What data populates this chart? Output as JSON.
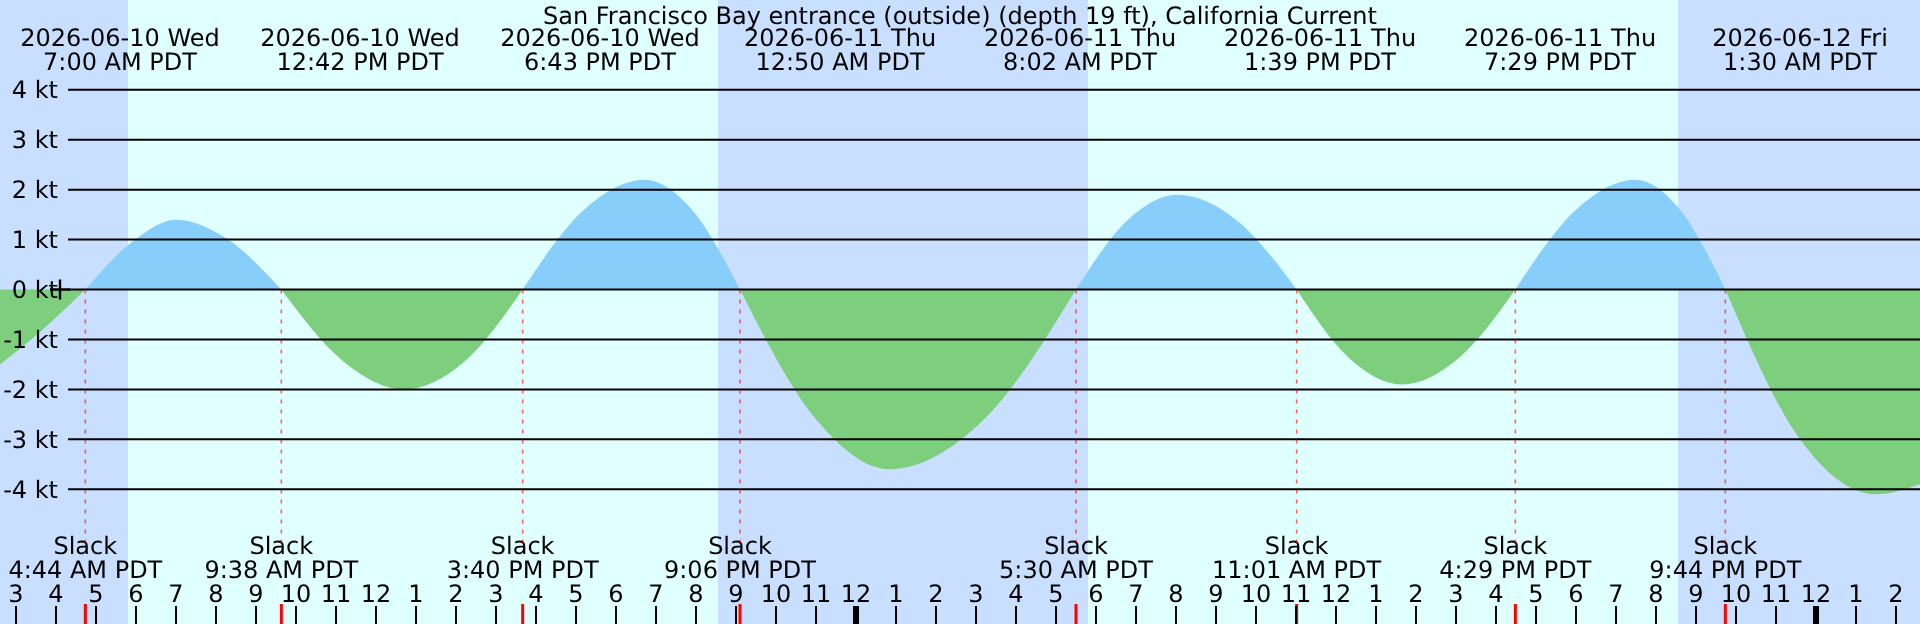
{
  "chart_data": {
    "type": "area",
    "title": "San Francisco Bay entrance (outside) (depth 19 ft), California Current",
    "xlim": [
      "2026-06-10T02:36",
      "2026-06-12T02:36"
    ],
    "ylim": [
      -6.7,
      5.8
    ],
    "xticks": [
      {
        "value": "2026-06-10T03:00",
        "label": "3"
      },
      {
        "value": "2026-06-10T04:00",
        "label": "4"
      },
      {
        "value": "2026-06-10T05:00",
        "label": "5"
      },
      {
        "value": "2026-06-10T06:00",
        "label": "6"
      },
      {
        "value": "2026-06-10T07:00",
        "label": "7"
      },
      {
        "value": "2026-06-10T08:00",
        "label": "8"
      },
      {
        "value": "2026-06-10T09:00",
        "label": "9"
      },
      {
        "value": "2026-06-10T10:00",
        "label": "10"
      },
      {
        "value": "2026-06-10T11:00",
        "label": "11"
      },
      {
        "value": "2026-06-10T12:00",
        "label": "12"
      },
      {
        "value": "2026-06-10T13:00",
        "label": "1"
      },
      {
        "value": "2026-06-10T14:00",
        "label": "2"
      },
      {
        "value": "2026-06-10T15:00",
        "label": "3"
      },
      {
        "value": "2026-06-10T16:00",
        "label": "4"
      },
      {
        "value": "2026-06-10T17:00",
        "label": "5"
      },
      {
        "value": "2026-06-10T18:00",
        "label": "6"
      },
      {
        "value": "2026-06-10T19:00",
        "label": "7"
      },
      {
        "value": "2026-06-10T20:00",
        "label": "8"
      },
      {
        "value": "2026-06-10T21:00",
        "label": "9"
      },
      {
        "value": "2026-06-10T22:00",
        "label": "10"
      },
      {
        "value": "2026-06-10T23:00",
        "label": "11"
      },
      {
        "value": "2026-06-11T00:00",
        "label": "12"
      },
      {
        "value": "2026-06-11T01:00",
        "label": "1"
      },
      {
        "value": "2026-06-11T02:00",
        "label": "2"
      },
      {
        "value": "2026-06-11T03:00",
        "label": "3"
      },
      {
        "value": "2026-06-11T04:00",
        "label": "4"
      },
      {
        "value": "2026-06-11T05:00",
        "label": "5"
      },
      {
        "value": "2026-06-11T06:00",
        "label": "6"
      },
      {
        "value": "2026-06-11T07:00",
        "label": "7"
      },
      {
        "value": "2026-06-11T08:00",
        "label": "8"
      },
      {
        "value": "2026-06-11T09:00",
        "label": "9"
      },
      {
        "value": "2026-06-11T10:00",
        "label": "10"
      },
      {
        "value": "2026-06-11T11:00",
        "label": "11"
      },
      {
        "value": "2026-06-11T12:00",
        "label": "12"
      },
      {
        "value": "2026-06-11T13:00",
        "label": "1"
      },
      {
        "value": "2026-06-11T14:00",
        "label": "2"
      },
      {
        "value": "2026-06-11T15:00",
        "label": "3"
      },
      {
        "value": "2026-06-11T16:00",
        "label": "4"
      },
      {
        "value": "2026-06-11T17:00",
        "label": "5"
      },
      {
        "value": "2026-06-11T18:00",
        "label": "6"
      },
      {
        "value": "2026-06-11T19:00",
        "label": "7"
      },
      {
        "value": "2026-06-11T20:00",
        "label": "8"
      },
      {
        "value": "2026-06-11T21:00",
        "label": "9"
      },
      {
        "value": "2026-06-11T22:00",
        "label": "10"
      },
      {
        "value": "2026-06-11T23:00",
        "label": "11"
      },
      {
        "value": "2026-06-12T00:00",
        "label": "12"
      },
      {
        "value": "2026-06-12T01:00",
        "label": "1"
      },
      {
        "value": "2026-06-12T02:00",
        "label": "2"
      }
    ],
    "yticks": [
      {
        "value": 4,
        "label": "4 kt"
      },
      {
        "value": 3,
        "label": "3 kt"
      },
      {
        "value": 2,
        "label": "2 kt"
      },
      {
        "value": 1,
        "label": "1 kt"
      },
      {
        "value": 0,
        "label": "0 kt"
      },
      {
        "value": -1,
        "label": "-1 kt"
      },
      {
        "value": -2,
        "label": "-2 kt"
      },
      {
        "value": -3,
        "label": "-3 kt"
      },
      {
        "value": -4,
        "label": "-4 kt"
      }
    ],
    "grid": "y",
    "bands": [
      {
        "axis": "x",
        "from": "2026-06-10T02:36",
        "to": "2026-06-10T05:48",
        "color": "#c8dfff"
      },
      {
        "axis": "x",
        "from": "2026-06-10T20:33",
        "to": "2026-06-11T05:48",
        "color": "#c8dfff"
      },
      {
        "axis": "x",
        "from": "2026-06-11T20:33",
        "to": "2026-06-12T02:36",
        "color": "#c8dfff"
      }
    ],
    "series": [
      {
        "color": "#87cefa",
        "x": [
          "2026-06-10T04:44",
          "2026-06-10T05:54",
          "2026-06-10T07:00",
          "2026-06-10T08:18",
          "2026-06-10T09:38",
          "2026-06-10T12:42",
          "2026-06-10T15:40",
          "2026-06-10T17:12",
          "2026-06-10T18:43",
          "2026-06-10T19:54",
          "2026-06-10T21:06",
          "2026-06-11T00:50",
          "2026-06-11T05:30",
          "2026-06-11T06:48",
          "2026-06-11T08:02",
          "2026-06-11T09:30",
          "2026-06-11T11:01",
          "2026-06-11T13:39",
          "2026-06-11T16:29",
          "2026-06-11T18:00",
          "2026-06-11T19:29",
          "2026-06-11T20:36",
          "2026-06-11T21:44"
        ],
        "values": [
          0,
          0.95,
          1.4,
          1.0,
          0,
          null,
          0,
          1.6,
          2.2,
          1.6,
          0,
          null,
          0,
          1.4,
          1.9,
          1.4,
          0,
          null,
          0,
          1.6,
          2.2,
          1.6,
          0
        ]
      },
      {
        "color": "#7dce7d",
        "x": [
          "2026-06-10T02:36",
          "2026-06-10T03:36",
          "2026-06-10T04:44",
          "2026-06-10T07:00",
          "2026-06-10T09:38",
          "2026-06-10T11:12",
          "2026-06-10T12:42",
          "2026-06-10T14:12",
          "2026-06-10T15:40",
          "2026-06-10T18:43",
          "2026-06-10T21:06",
          "2026-06-10T23:00",
          "2026-06-11T00:50",
          "2026-06-11T03:12",
          "2026-06-11T05:30",
          "2026-06-11T08:02",
          "2026-06-11T11:01",
          "2026-06-11T12:18",
          "2026-06-11T13:39",
          "2026-06-11T15:06",
          "2026-06-11T16:29",
          "2026-06-11T19:29",
          "2026-06-11T21:44",
          "2026-06-11T23:36",
          "2026-06-12T01:30",
          "2026-06-12T02:36"
        ],
        "values": [
          -1.5,
          -0.85,
          0,
          null,
          0,
          -1.45,
          -2.0,
          -1.45,
          0,
          null,
          0,
          -2.6,
          -3.6,
          -2.6,
          0,
          null,
          0,
          -1.35,
          -1.9,
          -1.35,
          0,
          null,
          0,
          -3.0,
          -4.1,
          -3.9
        ]
      },
      {
        "type": "scatter",
        "marker": "cross",
        "color": "#000000",
        "x": [
          "2026-06-10T04:06"
        ],
        "values": [
          0
        ]
      }
    ],
    "annotations": [
      "2026-06-10 Wed\n7:00 AM PDT",
      "2026-06-10 Wed\n12:42 PM PDT",
      "2026-06-10 Wed\n6:43 PM PDT",
      "2026-06-11 Thu\n12:50 AM PDT",
      "2026-06-11 Thu\n8:02 AM PDT",
      "2026-06-11 Thu\n1:39 PM PDT",
      "2026-06-11 Thu\n7:29 PM PDT",
      "2026-06-12 Fri\n1:30 AM PDT"
    ],
    "ref_lines": [
      {
        "axis": "x",
        "value": "2026-06-10T04:44",
        "label": "Slack\n4:44 AM PDT",
        "color": "#ff0000"
      },
      {
        "axis": "x",
        "value": "2026-06-10T09:38",
        "label": "Slack\n9:38 AM PDT",
        "color": "#ff0000"
      },
      {
        "axis": "x",
        "value": "2026-06-10T15:40",
        "label": "Slack\n3:40 PM PDT",
        "color": "#ff0000"
      },
      {
        "axis": "x",
        "value": "2026-06-10T21:06",
        "label": "Slack\n9:06 PM PDT",
        "color": "#ff0000"
      },
      {
        "axis": "x",
        "value": "2026-06-11T05:30",
        "label": "Slack\n5:30 AM PDT",
        "color": "#ff0000"
      },
      {
        "axis": "x",
        "value": "2026-06-11T11:01",
        "label": "Slack\n11:01 AM PDT",
        "color": "#ff0000"
      },
      {
        "axis": "x",
        "value": "2026-06-11T16:29",
        "label": "Slack\n4:29 PM PDT",
        "color": "#ff0000"
      },
      {
        "axis": "x",
        "value": "2026-06-11T21:44",
        "label": "Slack\n9:44 PM PDT",
        "color": "#ff0000"
      }
    ]
  }
}
